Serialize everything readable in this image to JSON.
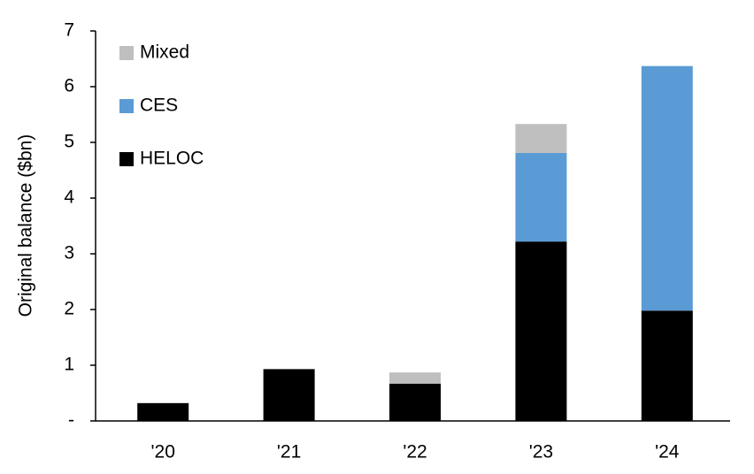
{
  "chart_data": {
    "type": "stacked-bar",
    "y_label": "Original balance ($bn)",
    "categories": [
      "'20",
      "'21",
      "'22",
      "'23",
      "'24"
    ],
    "series": [
      {
        "name": "HELOC",
        "color": "#000000",
        "values": [
          0.32,
          0.93,
          0.67,
          3.22,
          1.98
        ]
      },
      {
        "name": "CES",
        "color": "#5b9bd5",
        "values": [
          null,
          null,
          null,
          1.59,
          4.39
        ]
      },
      {
        "name": "Mixed",
        "color": "#bfbfbf",
        "values": [
          null,
          null,
          0.2,
          0.52,
          null
        ]
      }
    ],
    "ylim": [
      0,
      7
    ],
    "yticks": [
      {
        "value": 0,
        "label": "-"
      },
      1,
      2,
      3,
      4,
      5,
      6,
      7
    ],
    "legend": "top-left"
  }
}
